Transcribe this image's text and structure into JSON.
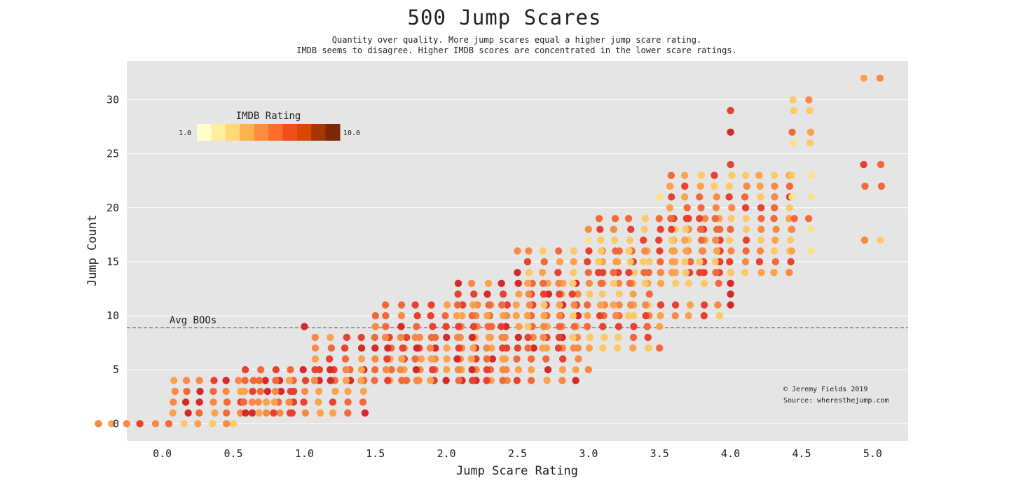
{
  "chart_data": {
    "type": "scatter",
    "title": "500 Jump Scares",
    "subtitle_lines": [
      "Quantity over quality. More jump scares equal a higher jump scare rating.",
      "IMDB seems to disagree. Higher IMDB scores are concentrated in the lower scare ratings."
    ],
    "xlabel": "Jump Scare Rating",
    "ylabel": "Jump Count",
    "xlim": [
      -0.25,
      5.25
    ],
    "ylim": [
      -1.6,
      33.6
    ],
    "xticks": [
      0.0,
      0.5,
      1.0,
      1.5,
      2.0,
      2.5,
      3.0,
      3.5,
      4.0,
      4.5,
      5.0
    ],
    "xtick_labels": [
      "0.0",
      "0.5",
      "1.0",
      "1.5",
      "2.0",
      "2.5",
      "3.0",
      "3.5",
      "4.0",
      "4.5",
      "5.0"
    ],
    "yticks": [
      0,
      5,
      10,
      15,
      20,
      25,
      30
    ],
    "ytick_labels": [
      "0",
      "5",
      "10",
      "15",
      "20",
      "25",
      "30"
    ],
    "grid": true,
    "reference_line": {
      "y": 8.9,
      "label": "Avg BOOs",
      "style": "dashed"
    },
    "colorbar": {
      "title": "IMDB Rating",
      "min_label": "1.0",
      "max_label": "10.0",
      "placement": "upper-left",
      "colors": [
        "#ffffcc",
        "#ffeda0",
        "#fed976",
        "#feb24c",
        "#fd8d3c",
        "#fc6d2c",
        "#f04f1c",
        "#d94801",
        "#a63603",
        "#7f2704"
      ]
    },
    "credits": [
      "© Jeremy Fields 2019",
      "Source: wheresthejump.com"
    ],
    "point_colors": [
      "#fde08a",
      "#fdc866",
      "#fda24c",
      "#f88a45",
      "#f26a3c",
      "#e8412f",
      "#d42a2a",
      "#c21a32"
    ],
    "point_groups": [
      {
        "x": 0.0,
        "ys": [
          0
        ],
        "n": 10,
        "spread": 0.45,
        "color_bias": 3
      },
      {
        "x": 0.5,
        "ys": [
          1,
          2,
          3,
          4
        ],
        "n": 10,
        "spread": 0.42,
        "color_bias": 4
      },
      {
        "x": 0.5,
        "ys": [
          0
        ],
        "n": 1,
        "spread": 0.0,
        "color_bias": 3
      },
      {
        "x": 1.0,
        "ys": [
          1,
          2,
          3,
          4,
          5
        ],
        "n": 9,
        "spread": 0.42,
        "color_bias": 4
      },
      {
        "x": 1.0,
        "ys": [
          9
        ],
        "n": 1,
        "spread": 0.0,
        "color_bias": 5
      },
      {
        "x": 1.5,
        "ys": [
          4,
          5,
          6,
          7,
          8
        ],
        "n": 9,
        "spread": 0.42,
        "color_bias": 4
      },
      {
        "x": 1.5,
        "ys": [
          9,
          10
        ],
        "n": 1,
        "spread": 0.0,
        "color_bias": 5
      },
      {
        "x": 2.0,
        "ys": [
          4,
          5,
          6,
          7,
          8,
          9,
          10,
          11
        ],
        "n": 9,
        "spread": 0.42,
        "color_bias": 4
      },
      {
        "x": 2.5,
        "ys": [
          4,
          5,
          6,
          7,
          8,
          9,
          10,
          11,
          12,
          13
        ],
        "n": 9,
        "spread": 0.42,
        "color_bias": 4
      },
      {
        "x": 2.5,
        "ys": [
          14,
          16
        ],
        "n": 1,
        "spread": 0.0,
        "color_bias": 5
      },
      {
        "x": 3.0,
        "ys": [
          7,
          8,
          9,
          10,
          11,
          12,
          13,
          14,
          15,
          16
        ],
        "n": 9,
        "spread": 0.42,
        "color_bias": 3
      },
      {
        "x": 3.0,
        "ys": [
          5,
          17,
          18
        ],
        "n": 1,
        "spread": 0.0,
        "color_bias": 2
      },
      {
        "x": 3.5,
        "ys": [
          10,
          11,
          13,
          14,
          15,
          16,
          17,
          18,
          19
        ],
        "n": 9,
        "spread": 0.42,
        "color_bias": 3
      },
      {
        "x": 3.5,
        "ys": [
          7,
          9,
          21
        ],
        "n": 1,
        "spread": 0.0,
        "color_bias": 2
      },
      {
        "x": 4.0,
        "ys": [
          14,
          15,
          16,
          17,
          18,
          19,
          20,
          21,
          22,
          23
        ],
        "n": 9,
        "spread": 0.42,
        "color_bias": 3
      },
      {
        "x": 4.0,
        "ys": [
          11,
          12,
          13,
          24,
          27,
          29
        ],
        "n": 1,
        "spread": 0.0,
        "color_bias": 4
      },
      {
        "x": 4.5,
        "ys": [
          16,
          18,
          19,
          21,
          23,
          26,
          27,
          29,
          30
        ],
        "n": 2,
        "spread": 0.06,
        "color_bias": 2
      },
      {
        "x": 5.0,
        "ys": [
          17,
          22,
          24,
          32
        ],
        "n": 2,
        "spread": 0.06,
        "color_bias": 3
      }
    ]
  }
}
